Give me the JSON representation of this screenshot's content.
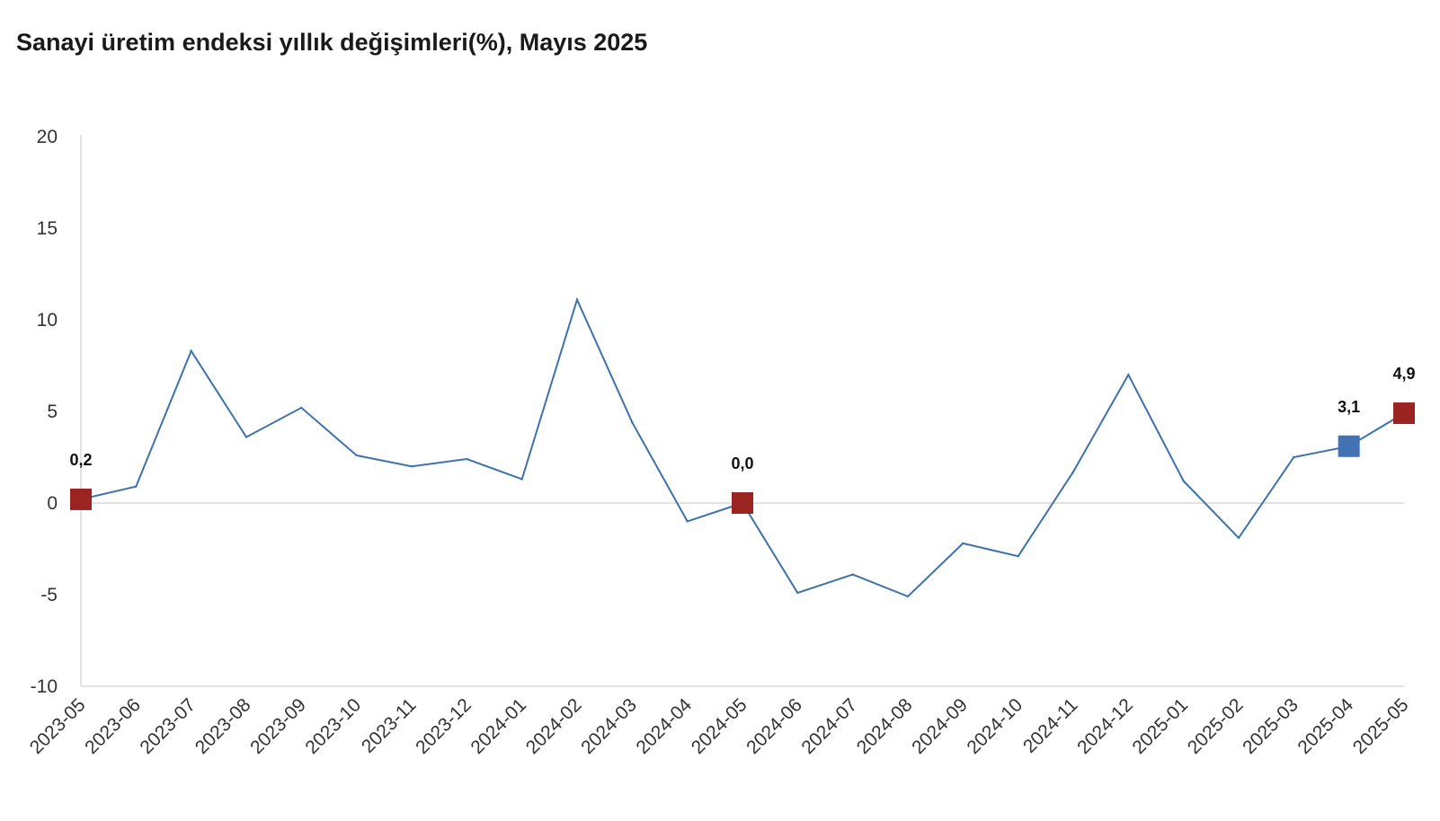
{
  "chart_data": {
    "type": "line",
    "title": "Sanayi üretim endeksi yıllık değişimleri(%), Mayıs 2025",
    "xlabel": "",
    "ylabel": "",
    "ylim": [
      -10,
      20
    ],
    "yticks": [
      "20",
      "15",
      "10",
      "5",
      "0",
      "-5",
      "-10"
    ],
    "ytick_values": [
      20,
      15,
      10,
      5,
      0,
      -5,
      -10
    ],
    "categories": [
      "2023-05",
      "2023-06",
      "2023-07",
      "2023-08",
      "2023-09",
      "2023-10",
      "2023-11",
      "2023-12",
      "2024-01",
      "2024-02",
      "2024-03",
      "2024-04",
      "2024-05",
      "2024-06",
      "2024-07",
      "2024-08",
      "2024-09",
      "2024-10",
      "2024-11",
      "2024-12",
      "2025-01",
      "2025-02",
      "2025-03",
      "2025-04",
      "2025-05"
    ],
    "series": [
      {
        "values": [
          0.2,
          0.9,
          8.3,
          3.6,
          5.2,
          2.6,
          2.0,
          2.4,
          1.3,
          11.1,
          4.4,
          -1.0,
          0.0,
          -4.9,
          -3.9,
          -5.1,
          -2.2,
          -2.9,
          1.7,
          7.0,
          1.2,
          -1.9,
          2.5,
          3.1,
          4.9
        ],
        "color": "#3d72ad"
      }
    ],
    "highlights": [
      {
        "index": 0,
        "label": "0,2",
        "color": "#9b2423"
      },
      {
        "index": 12,
        "label": "0,0",
        "color": "#9b2423"
      },
      {
        "index": 23,
        "label": "3,1",
        "color": "#4272b3"
      },
      {
        "index": 24,
        "label": "4,9",
        "color": "#9b2423"
      }
    ],
    "grid": false,
    "zero_line": true,
    "legend": "none"
  }
}
